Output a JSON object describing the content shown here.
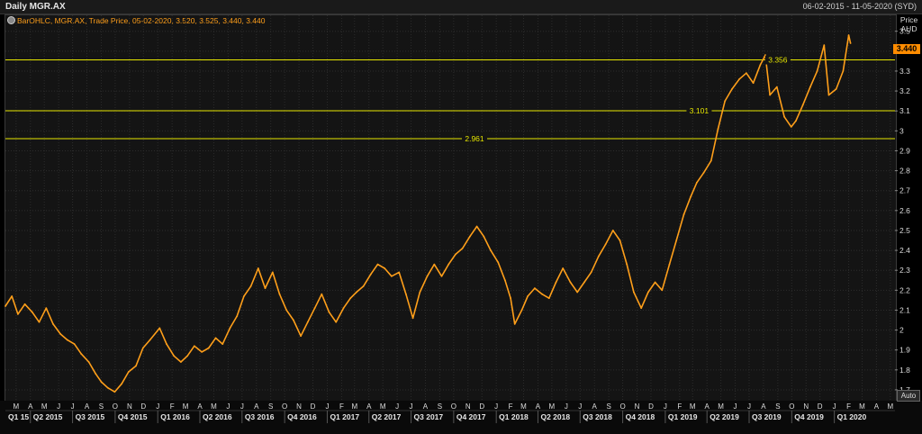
{
  "header": {
    "title": "Daily MGR.AX",
    "date_range": "06-02-2015 - 11-05-2020 (SYD)"
  },
  "legend": {
    "text": "BarOHLC, MGR.AX, Trade Price, 05-02-2020, 3.520, 3.525, 3.440, 3.440"
  },
  "axis": {
    "price_title_line1": "Price",
    "price_title_line2": "AUD",
    "last_price": "3.440",
    "auto_button": "Auto"
  },
  "colors": {
    "series": "#ff9f1a",
    "hline": "#e6e600",
    "last_price_bg": "#ff8c00"
  },
  "chart_data": {
    "type": "line",
    "title": "Daily MGR.AX",
    "ylabel": "Price AUD",
    "ylim": [
      1.65,
      3.58
    ],
    "y_ticks": [
      1.7,
      1.8,
      1.9,
      2,
      2.1,
      2.2,
      2.3,
      2.4,
      2.5,
      2.6,
      2.7,
      2.8,
      2.9,
      3,
      3.1,
      3.2,
      3.3,
      3.4,
      3.5
    ],
    "y_tick_labels": [
      "1.7",
      "1.8",
      "1.9",
      "2",
      "2.1",
      "2.2",
      "2.3",
      "2.4",
      "2.5",
      "2.6",
      "2.7",
      "2.8",
      "2.9",
      "3",
      "3.1",
      "3.2",
      "3.3",
      "3.4",
      "3.5"
    ],
    "x_range": [
      "2015-02-06",
      "2020-05-11"
    ],
    "month_ticks": [
      {
        "label": "M",
        "date": "2015-03-01"
      },
      {
        "label": "A",
        "date": "2015-04-01"
      },
      {
        "label": "M",
        "date": "2015-05-01"
      },
      {
        "label": "J",
        "date": "2015-06-01"
      },
      {
        "label": "J",
        "date": "2015-07-01"
      },
      {
        "label": "A",
        "date": "2015-08-01"
      },
      {
        "label": "S",
        "date": "2015-09-01"
      },
      {
        "label": "O",
        "date": "2015-10-01"
      },
      {
        "label": "N",
        "date": "2015-11-01"
      },
      {
        "label": "D",
        "date": "2015-12-01"
      },
      {
        "label": "J",
        "date": "2016-01-01"
      },
      {
        "label": "F",
        "date": "2016-02-01"
      },
      {
        "label": "M",
        "date": "2016-03-01"
      },
      {
        "label": "A",
        "date": "2016-04-01"
      },
      {
        "label": "M",
        "date": "2016-05-01"
      },
      {
        "label": "J",
        "date": "2016-06-01"
      },
      {
        "label": "J",
        "date": "2016-07-01"
      },
      {
        "label": "A",
        "date": "2016-08-01"
      },
      {
        "label": "S",
        "date": "2016-09-01"
      },
      {
        "label": "O",
        "date": "2016-10-01"
      },
      {
        "label": "N",
        "date": "2016-11-01"
      },
      {
        "label": "D",
        "date": "2016-12-01"
      },
      {
        "label": "J",
        "date": "2017-01-01"
      },
      {
        "label": "F",
        "date": "2017-02-01"
      },
      {
        "label": "M",
        "date": "2017-03-01"
      },
      {
        "label": "A",
        "date": "2017-04-01"
      },
      {
        "label": "M",
        "date": "2017-05-01"
      },
      {
        "label": "J",
        "date": "2017-06-01"
      },
      {
        "label": "J",
        "date": "2017-07-01"
      },
      {
        "label": "A",
        "date": "2017-08-01"
      },
      {
        "label": "S",
        "date": "2017-09-01"
      },
      {
        "label": "O",
        "date": "2017-10-01"
      },
      {
        "label": "N",
        "date": "2017-11-01"
      },
      {
        "label": "D",
        "date": "2017-12-01"
      },
      {
        "label": "J",
        "date": "2018-01-01"
      },
      {
        "label": "F",
        "date": "2018-02-01"
      },
      {
        "label": "M",
        "date": "2018-03-01"
      },
      {
        "label": "A",
        "date": "2018-04-01"
      },
      {
        "label": "M",
        "date": "2018-05-01"
      },
      {
        "label": "J",
        "date": "2018-06-01"
      },
      {
        "label": "J",
        "date": "2018-07-01"
      },
      {
        "label": "A",
        "date": "2018-08-01"
      },
      {
        "label": "S",
        "date": "2018-09-01"
      },
      {
        "label": "O",
        "date": "2018-10-01"
      },
      {
        "label": "N",
        "date": "2018-11-01"
      },
      {
        "label": "D",
        "date": "2018-12-01"
      },
      {
        "label": "J",
        "date": "2019-01-01"
      },
      {
        "label": "F",
        "date": "2019-02-01"
      },
      {
        "label": "M",
        "date": "2019-03-01"
      },
      {
        "label": "A",
        "date": "2019-04-01"
      },
      {
        "label": "M",
        "date": "2019-05-01"
      },
      {
        "label": "J",
        "date": "2019-06-01"
      },
      {
        "label": "J",
        "date": "2019-07-01"
      },
      {
        "label": "A",
        "date": "2019-08-01"
      },
      {
        "label": "S",
        "date": "2019-09-01"
      },
      {
        "label": "O",
        "date": "2019-10-01"
      },
      {
        "label": "N",
        "date": "2019-11-01"
      },
      {
        "label": "D",
        "date": "2019-12-01"
      },
      {
        "label": "J",
        "date": "2020-01-01"
      },
      {
        "label": "F",
        "date": "2020-02-01"
      },
      {
        "label": "M",
        "date": "2020-03-01"
      },
      {
        "label": "A",
        "date": "2020-04-01"
      },
      {
        "label": "M",
        "date": "2020-05-01"
      }
    ],
    "quarter_ticks": [
      {
        "label": "Q1 15",
        "date": "2015-02-06"
      },
      {
        "label": "Q2 2015",
        "date": "2015-04-01"
      },
      {
        "label": "Q3 2015",
        "date": "2015-07-01"
      },
      {
        "label": "Q4 2015",
        "date": "2015-10-01"
      },
      {
        "label": "Q1 2016",
        "date": "2016-01-01"
      },
      {
        "label": "Q2 2016",
        "date": "2016-04-01"
      },
      {
        "label": "Q3 2016",
        "date": "2016-07-01"
      },
      {
        "label": "Q4 2016",
        "date": "2016-10-01"
      },
      {
        "label": "Q1 2017",
        "date": "2017-01-01"
      },
      {
        "label": "Q2 2017",
        "date": "2017-04-01"
      },
      {
        "label": "Q3 2017",
        "date": "2017-07-01"
      },
      {
        "label": "Q4 2017",
        "date": "2017-10-01"
      },
      {
        "label": "Q1 2018",
        "date": "2018-01-01"
      },
      {
        "label": "Q2 2018",
        "date": "2018-04-01"
      },
      {
        "label": "Q3 2018",
        "date": "2018-07-01"
      },
      {
        "label": "Q4 2018",
        "date": "2018-10-01"
      },
      {
        "label": "Q1 2019",
        "date": "2019-01-01"
      },
      {
        "label": "Q2 2019",
        "date": "2019-04-01"
      },
      {
        "label": "Q3 2019",
        "date": "2019-07-01"
      },
      {
        "label": "Q4 2019",
        "date": "2019-10-01"
      },
      {
        "label": "Q1 2020",
        "date": "2020-01-01"
      }
    ],
    "horizontal_lines": [
      {
        "value": 3.356,
        "label": "3.356"
      },
      {
        "value": 3.101,
        "label": "3.101"
      },
      {
        "value": 2.961,
        "label": "2.961"
      }
    ],
    "series": [
      {
        "points": [
          [
            "2015-02-06",
            2.12
          ],
          [
            "2015-02-20",
            2.17
          ],
          [
            "2015-03-05",
            2.08
          ],
          [
            "2015-03-20",
            2.13
          ],
          [
            "2015-04-05",
            2.09
          ],
          [
            "2015-04-20",
            2.04
          ],
          [
            "2015-05-05",
            2.11
          ],
          [
            "2015-05-20",
            2.03
          ],
          [
            "2015-06-05",
            1.98
          ],
          [
            "2015-06-20",
            1.95
          ],
          [
            "2015-07-05",
            1.93
          ],
          [
            "2015-07-20",
            1.88
          ],
          [
            "2015-08-05",
            1.84
          ],
          [
            "2015-08-20",
            1.78
          ],
          [
            "2015-09-01",
            1.74
          ],
          [
            "2015-09-15",
            1.71
          ],
          [
            "2015-09-30",
            1.69
          ],
          [
            "2015-10-15",
            1.73
          ],
          [
            "2015-10-30",
            1.79
          ],
          [
            "2015-11-15",
            1.82
          ],
          [
            "2015-11-30",
            1.91
          ],
          [
            "2015-12-15",
            1.95
          ],
          [
            "2016-01-05",
            2.01
          ],
          [
            "2016-01-20",
            1.93
          ],
          [
            "2016-02-05",
            1.87
          ],
          [
            "2016-02-20",
            1.84
          ],
          [
            "2016-03-05",
            1.87
          ],
          [
            "2016-03-20",
            1.92
          ],
          [
            "2016-04-05",
            1.89
          ],
          [
            "2016-04-20",
            1.91
          ],
          [
            "2016-05-05",
            1.96
          ],
          [
            "2016-05-20",
            1.93
          ],
          [
            "2016-06-05",
            2.01
          ],
          [
            "2016-06-20",
            2.07
          ],
          [
            "2016-07-05",
            2.17
          ],
          [
            "2016-07-20",
            2.22
          ],
          [
            "2016-08-05",
            2.31
          ],
          [
            "2016-08-20",
            2.21
          ],
          [
            "2016-09-05",
            2.29
          ],
          [
            "2016-09-20",
            2.18
          ],
          [
            "2016-10-05",
            2.1
          ],
          [
            "2016-10-20",
            2.05
          ],
          [
            "2016-11-05",
            1.97
          ],
          [
            "2016-11-20",
            2.04
          ],
          [
            "2016-12-05",
            2.11
          ],
          [
            "2016-12-20",
            2.18
          ],
          [
            "2017-01-05",
            2.09
          ],
          [
            "2017-01-20",
            2.04
          ],
          [
            "2017-02-05",
            2.11
          ],
          [
            "2017-02-20",
            2.16
          ],
          [
            "2017-03-05",
            2.19
          ],
          [
            "2017-03-20",
            2.22
          ],
          [
            "2017-04-05",
            2.28
          ],
          [
            "2017-04-20",
            2.33
          ],
          [
            "2017-05-05",
            2.31
          ],
          [
            "2017-05-20",
            2.27
          ],
          [
            "2017-06-05",
            2.29
          ],
          [
            "2017-06-20",
            2.18
          ],
          [
            "2017-07-05",
            2.06
          ],
          [
            "2017-07-20",
            2.19
          ],
          [
            "2017-08-05",
            2.27
          ],
          [
            "2017-08-20",
            2.33
          ],
          [
            "2017-09-05",
            2.27
          ],
          [
            "2017-09-20",
            2.33
          ],
          [
            "2017-10-05",
            2.38
          ],
          [
            "2017-10-20",
            2.41
          ],
          [
            "2017-11-05",
            2.47
          ],
          [
            "2017-11-20",
            2.52
          ],
          [
            "2017-12-05",
            2.47
          ],
          [
            "2017-12-20",
            2.4
          ],
          [
            "2018-01-05",
            2.34
          ],
          [
            "2018-01-20",
            2.25
          ],
          [
            "2018-02-01",
            2.16
          ],
          [
            "2018-02-10",
            2.03
          ],
          [
            "2018-02-25",
            2.1
          ],
          [
            "2018-03-10",
            2.17
          ],
          [
            "2018-03-25",
            2.21
          ],
          [
            "2018-04-10",
            2.18
          ],
          [
            "2018-04-25",
            2.16
          ],
          [
            "2018-05-10",
            2.24
          ],
          [
            "2018-05-25",
            2.31
          ],
          [
            "2018-06-10",
            2.24
          ],
          [
            "2018-06-25",
            2.19
          ],
          [
            "2018-07-10",
            2.24
          ],
          [
            "2018-07-25",
            2.29
          ],
          [
            "2018-08-10",
            2.37
          ],
          [
            "2018-08-25",
            2.43
          ],
          [
            "2018-09-10",
            2.5
          ],
          [
            "2018-09-25",
            2.45
          ],
          [
            "2018-10-10",
            2.33
          ],
          [
            "2018-10-25",
            2.19
          ],
          [
            "2018-11-10",
            2.11
          ],
          [
            "2018-11-25",
            2.19
          ],
          [
            "2018-12-10",
            2.24
          ],
          [
            "2018-12-25",
            2.2
          ],
          [
            "2019-01-10",
            2.33
          ],
          [
            "2019-01-25",
            2.45
          ],
          [
            "2019-02-10",
            2.58
          ],
          [
            "2019-02-25",
            2.67
          ],
          [
            "2019-03-10",
            2.74
          ],
          [
            "2019-03-25",
            2.79
          ],
          [
            "2019-04-10",
            2.85
          ],
          [
            "2019-04-25",
            3.01
          ],
          [
            "2019-05-10",
            3.15
          ],
          [
            "2019-05-25",
            3.21
          ],
          [
            "2019-06-10",
            3.26
          ],
          [
            "2019-06-25",
            3.29
          ],
          [
            "2019-07-10",
            3.24
          ],
          [
            "2019-07-25",
            3.33
          ],
          [
            "2019-08-05",
            3.38
          ],
          [
            "2019-08-15",
            3.18
          ],
          [
            "2019-08-30",
            3.22
          ],
          [
            "2019-09-15",
            3.07
          ],
          [
            "2019-09-30",
            3.02
          ],
          [
            "2019-10-10",
            3.05
          ],
          [
            "2019-10-25",
            3.13
          ],
          [
            "2019-11-10",
            3.22
          ],
          [
            "2019-11-25",
            3.3
          ],
          [
            "2019-12-10",
            3.43
          ],
          [
            "2019-12-20",
            3.18
          ],
          [
            "2020-01-05",
            3.21
          ],
          [
            "2020-01-20",
            3.3
          ],
          [
            "2020-02-01",
            3.48
          ],
          [
            "2020-02-05",
            3.44
          ]
        ]
      }
    ]
  }
}
